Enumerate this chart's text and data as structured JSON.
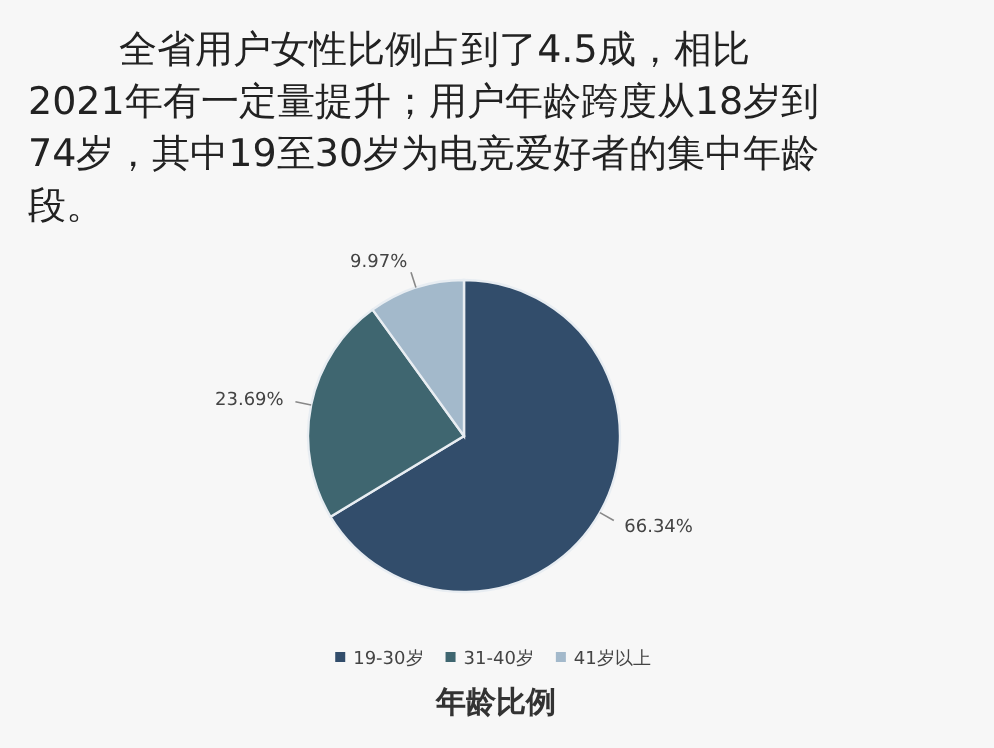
{
  "chart_data": {
    "type": "pie",
    "title": "年龄比例",
    "annotations": [
      "全省用户女性比例占到了4.5成，相比2021年有一定量提升；用户年龄跨度从18岁到74岁，其中19至30岁为电竞爱好者的集中年龄段。"
    ],
    "categories": [
      "19-30岁",
      "31-40岁",
      "41岁以上"
    ],
    "values": [
      66.34,
      23.69,
      9.97
    ],
    "colors": [
      "#324d6b",
      "#3f6670",
      "#a3b9cb"
    ],
    "value_labels": [
      "66.34%",
      "23.69%",
      "9.97%"
    ],
    "legend": "bottom"
  }
}
